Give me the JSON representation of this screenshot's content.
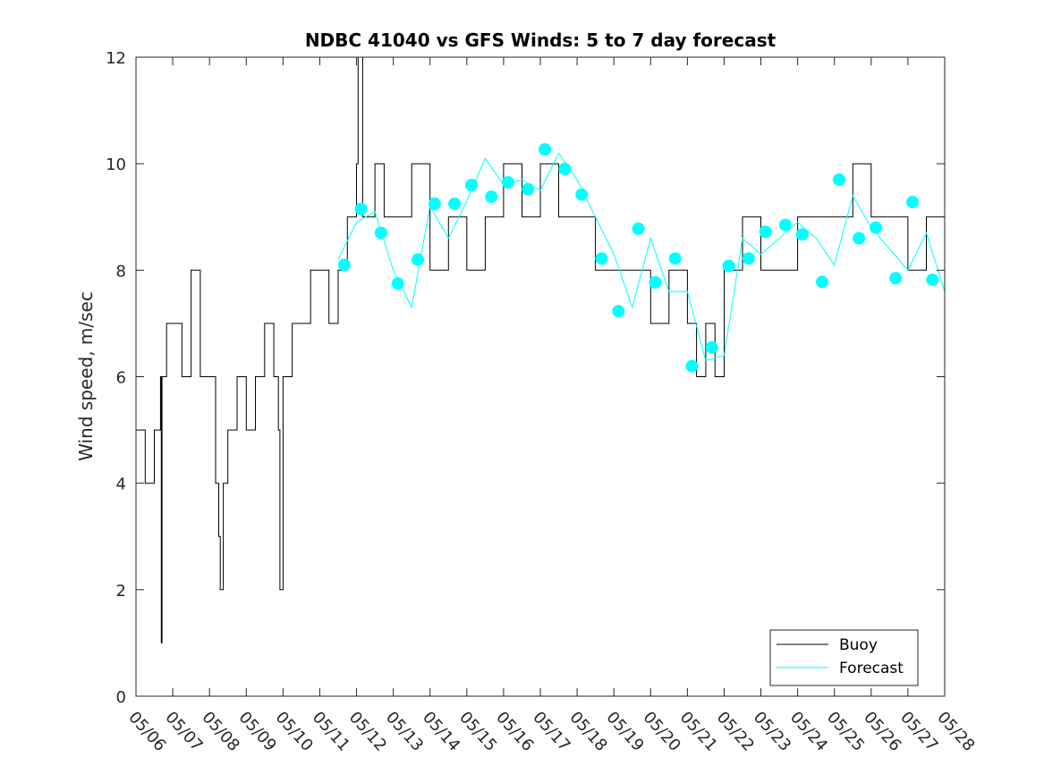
{
  "chart_data": {
    "type": "line",
    "title": "NDBC 41040 vs GFS Winds: 5 to 7 day forecast",
    "xlabel": "",
    "ylabel": "Wind speed, m/sec",
    "x_tick_labels": [
      "05/06",
      "05/07",
      "05/08",
      "05/09",
      "05/10",
      "05/11",
      "05/12",
      "05/13",
      "05/14",
      "05/15",
      "05/16",
      "05/17",
      "05/18",
      "05/19",
      "05/20",
      "05/21",
      "05/22",
      "05/23",
      "05/24",
      "05/25",
      "05/26",
      "05/27",
      "05/28"
    ],
    "xlim": [
      "05/06 00:00",
      "05/28 00:00"
    ],
    "y_ticks": [
      0,
      2,
      4,
      6,
      8,
      10,
      12
    ],
    "ylim": [
      0,
      12
    ],
    "grid": false,
    "legend": {
      "position": "bottom-right",
      "entries": [
        "Buoy",
        "Forecast"
      ]
    },
    "colors": {
      "buoy": "#000000",
      "forecast": "#00ffff",
      "markers": "#00ffff"
    },
    "series": [
      {
        "name": "Buoy",
        "style": "line",
        "x": [
          "05/06 00:00",
          "05/06 06:00",
          "05/06 12:00",
          "05/06 16:00",
          "05/06 16:30",
          "05/06 17:00",
          "05/06 20:00",
          "05/07 00:00",
          "05/07 06:00",
          "05/07 12:00",
          "05/07 18:00",
          "05/08 00:00",
          "05/08 04:00",
          "05/08 06:00",
          "05/08 07:00",
          "05/08 09:00",
          "05/08 12:00",
          "05/08 18:00",
          "05/09 00:00",
          "05/09 06:00",
          "05/09 12:00",
          "05/09 18:00",
          "05/09 21:00",
          "05/09 22:00",
          "05/10 00:00",
          "05/10 06:00",
          "05/10 12:00",
          "05/10 18:00",
          "05/11 00:00",
          "05/11 06:00",
          "05/11 12:00",
          "05/11 18:00",
          "05/12 00:00",
          "05/12 01:00",
          "05/12 04:00",
          "05/12 12:00",
          "05/12 18:00",
          "05/13 00:00",
          "05/13 12:00",
          "05/14 00:00",
          "05/14 12:00",
          "05/15 00:00",
          "05/15 12:00",
          "05/16 00:00",
          "05/16 12:00",
          "05/17 00:00",
          "05/17 12:00",
          "05/18 00:00",
          "05/18 12:00",
          "05/19 00:00",
          "05/19 12:00",
          "05/20 00:00",
          "05/20 12:00",
          "05/21 00:00",
          "05/21 06:00",
          "05/21 12:00",
          "05/21 18:00",
          "05/22 00:00",
          "05/22 12:00",
          "05/23 00:00",
          "05/23 12:00",
          "05/24 00:00",
          "05/24 12:00",
          "05/25 00:00",
          "05/25 12:00",
          "05/26 00:00",
          "05/26 12:00",
          "05/27 00:00",
          "05/27 12:00",
          "05/28 00:00"
        ],
        "values": [
          5,
          4,
          5,
          6,
          1,
          6,
          7,
          7,
          6,
          8,
          6,
          6,
          4,
          3,
          2,
          4,
          5,
          6,
          5,
          6,
          7,
          6,
          5,
          2,
          6,
          7,
          7,
          8,
          8,
          7,
          8,
          9,
          10,
          12,
          9,
          10,
          9,
          9,
          10,
          8,
          9,
          8,
          9,
          10,
          9,
          10,
          9,
          9,
          8,
          8,
          8,
          7,
          8,
          7,
          6,
          7,
          6,
          8,
          9,
          8,
          8,
          9,
          9,
          9,
          10,
          9,
          9,
          8,
          9,
          8
        ]
      },
      {
        "name": "Forecast",
        "style": "line",
        "x": [
          "05/11 12:00",
          "05/12 00:00",
          "05/12 12:00",
          "05/13 00:00",
          "05/13 12:00",
          "05/14 00:00",
          "05/14 12:00",
          "05/15 00:00",
          "05/15 12:00",
          "05/16 00:00",
          "05/16 12:00",
          "05/17 00:00",
          "05/17 12:00",
          "05/18 00:00",
          "05/18 12:00",
          "05/19 00:00",
          "05/19 12:00",
          "05/20 00:00",
          "05/20 12:00",
          "05/21 00:00",
          "05/21 12:00",
          "05/22 00:00",
          "05/22 12:00",
          "05/23 00:00",
          "05/23 12:00",
          "05/24 00:00",
          "05/24 12:00",
          "05/25 00:00",
          "05/25 12:00",
          "05/26 00:00",
          "05/26 12:00",
          "05/27 00:00",
          "05/27 12:00",
          "05/28 00:00"
        ],
        "values": [
          8.2,
          8.9,
          9.1,
          8.0,
          7.3,
          9.2,
          8.6,
          9.3,
          10.1,
          9.6,
          9.7,
          9.5,
          10.2,
          9.7,
          9.0,
          8.3,
          7.3,
          8.6,
          7.6,
          7.6,
          6.3,
          6.4,
          8.6,
          8.3,
          8.6,
          8.9,
          8.6,
          8.1,
          9.4,
          8.8,
          8.4,
          8.0,
          8.7,
          7.6
        ]
      },
      {
        "name": "",
        "style": "markers",
        "x": [
          "05/11 16:00",
          "05/12 03:00",
          "05/12 16:00",
          "05/13 03:00",
          "05/13 16:00",
          "05/14 03:00",
          "05/14 16:00",
          "05/15 03:00",
          "05/15 16:00",
          "05/16 03:00",
          "05/16 16:00",
          "05/17 03:00",
          "05/17 16:00",
          "05/18 03:00",
          "05/18 16:00",
          "05/19 03:00",
          "05/19 16:00",
          "05/20 03:00",
          "05/20 16:00",
          "05/21 03:00",
          "05/21 16:00",
          "05/22 03:00",
          "05/22 16:00",
          "05/23 03:00",
          "05/23 16:00",
          "05/24 03:00",
          "05/24 16:00",
          "05/25 03:00",
          "05/25 16:00",
          "05/26 03:00",
          "05/26 16:00",
          "05/27 03:00",
          "05/27 16:00"
        ],
        "values": [
          8.1,
          9.15,
          8.7,
          7.75,
          8.2,
          9.25,
          9.25,
          9.6,
          9.38,
          9.65,
          9.52,
          10.27,
          9.9,
          9.42,
          8.22,
          7.23,
          8.78,
          7.77,
          8.22,
          6.2,
          6.55,
          8.08,
          8.22,
          8.72,
          8.85,
          8.67,
          7.78,
          9.7,
          8.6,
          8.8,
          7.85,
          9.28,
          7.82
        ]
      }
    ]
  }
}
